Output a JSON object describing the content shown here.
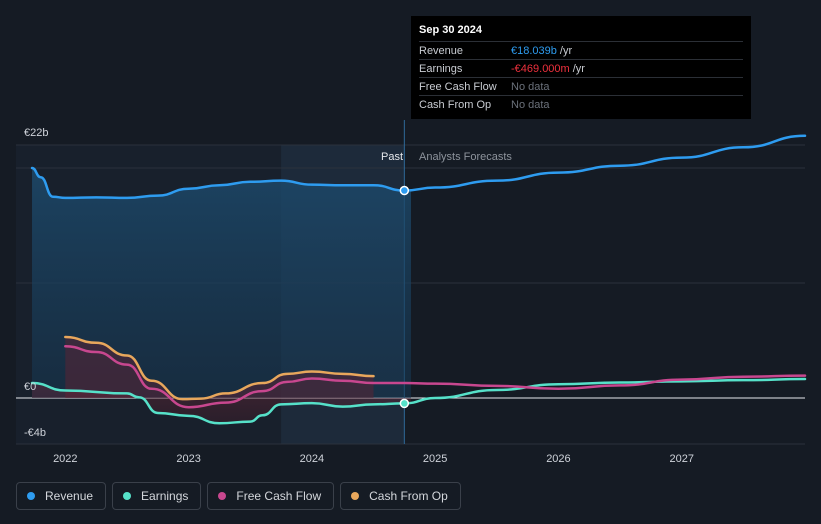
{
  "chart_data": {
    "type": "line",
    "x_range": [
      2021.6,
      2028.0
    ],
    "ylim": [
      -4,
      22
    ],
    "y_tick_labels": [
      "€22b",
      "€0",
      "-€4b"
    ],
    "x_tick_labels": [
      "2022",
      "2023",
      "2024",
      "2025",
      "2026",
      "2027"
    ],
    "x_ticks": [
      2022,
      2023,
      2024,
      2025,
      2026,
      2027
    ],
    "past_label": "Past",
    "forecast_label": "Analysts Forecasts",
    "divider_x": 2024.75,
    "highlight_start_x": 2023.75,
    "series": [
      {
        "name": "Revenue",
        "color": "#2e9cf0",
        "x": [
          2021.73,
          2021.8,
          2021.9,
          2022.0,
          2022.25,
          2022.5,
          2022.75,
          2023.0,
          2023.25,
          2023.5,
          2023.75,
          2024.0,
          2024.25,
          2024.5,
          2024.75,
          2025.0,
          2025.5,
          2026.0,
          2026.5,
          2027.0,
          2027.5,
          2028.0
        ],
        "y": [
          20.0,
          19.2,
          17.5,
          17.4,
          17.45,
          17.4,
          17.6,
          18.2,
          18.5,
          18.8,
          18.9,
          18.55,
          18.5,
          18.5,
          18.04,
          18.3,
          18.9,
          19.6,
          20.2,
          20.9,
          21.8,
          22.8
        ]
      },
      {
        "name": "Earnings",
        "color": "#56e1c9",
        "x": [
          2021.73,
          2022.0,
          2022.5,
          2022.6,
          2022.75,
          2023.0,
          2023.25,
          2023.5,
          2023.6,
          2023.75,
          2024.0,
          2024.25,
          2024.5,
          2024.75,
          2025.0,
          2025.5,
          2026.0,
          2026.5,
          2027.0,
          2027.5,
          2028.0
        ],
        "y": [
          1.3,
          0.65,
          0.4,
          0.05,
          -1.3,
          -1.55,
          -2.2,
          -2.05,
          -1.5,
          -0.55,
          -0.45,
          -0.75,
          -0.55,
          -0.47,
          0.0,
          0.7,
          1.2,
          1.35,
          1.45,
          1.55,
          1.65
        ]
      },
      {
        "name": "Free Cash Flow",
        "color": "#c8478f",
        "x": [
          2022.0,
          2022.25,
          2022.5,
          2022.7,
          2023.0,
          2023.3,
          2023.6,
          2023.8,
          2024.0,
          2024.25,
          2024.5,
          2024.75,
          2025.0,
          2025.5,
          2026.0,
          2026.5,
          2027.0,
          2027.5,
          2028.0
        ],
        "y": [
          4.5,
          4.0,
          2.9,
          0.8,
          -0.8,
          -0.4,
          0.6,
          1.4,
          1.7,
          1.5,
          1.3,
          1.3,
          1.25,
          1.05,
          0.8,
          1.1,
          1.6,
          1.85,
          1.95
        ]
      },
      {
        "name": "Cash From Op",
        "color": "#e8a75c",
        "x": [
          2022.0,
          2022.25,
          2022.5,
          2022.7,
          2022.95,
          2023.1,
          2023.3,
          2023.6,
          2023.8,
          2024.0,
          2024.25,
          2024.5
        ],
        "y": [
          5.3,
          4.8,
          3.7,
          1.5,
          -0.1,
          -0.05,
          0.4,
          1.3,
          2.1,
          2.3,
          2.1,
          1.9
        ]
      }
    ]
  },
  "tooltip": {
    "date": "Sep 30 2024",
    "rows": [
      {
        "label": "Revenue",
        "value": "€18.039b",
        "unit": "/yr"
      },
      {
        "label": "Earnings",
        "value": "-€469.000m",
        "unit": "/yr"
      },
      {
        "label": "Free Cash Flow",
        "value": "No data",
        "unit": ""
      },
      {
        "label": "Cash From Op",
        "value": "No data",
        "unit": ""
      }
    ]
  },
  "legend": [
    {
      "label": "Revenue",
      "color": "#2e9cf0"
    },
    {
      "label": "Earnings",
      "color": "#56e1c9"
    },
    {
      "label": "Free Cash Flow",
      "color": "#c8478f"
    },
    {
      "label": "Cash From Op",
      "color": "#e8a75c"
    }
  ]
}
